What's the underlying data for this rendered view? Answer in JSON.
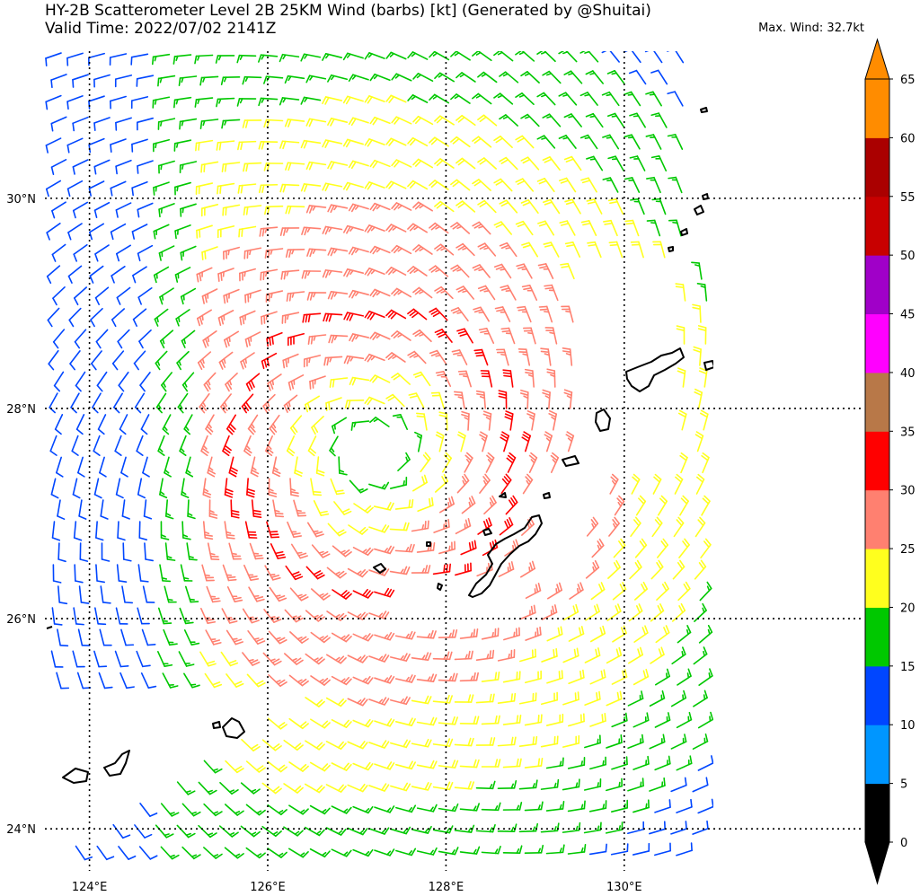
{
  "header": {
    "title": "HY-2B Scatterometer Level 2B 25KM Wind (barbs) [kt] (Generated by @Shuitai)",
    "valid_time": "Valid Time: 2022/07/02 2141Z",
    "max_wind": "Max. Wind: 32.7kt"
  },
  "map": {
    "lon_range": [
      123.5,
      131.0
    ],
    "lat_range": [
      23.6,
      31.4
    ],
    "lon_ticks": [
      "124°E",
      "126°E",
      "128°E",
      "130°E"
    ],
    "lon_tick_values": [
      124,
      126,
      128,
      130
    ],
    "lat_ticks": [
      "30°N",
      "28°N",
      "26°N",
      "24°N"
    ],
    "lat_tick_values": [
      30,
      28,
      26,
      24
    ],
    "grid": true,
    "vortex_center": [
      127.2,
      27.6
    ]
  },
  "colorbar": {
    "levels": [
      "0",
      "5",
      "10",
      "15",
      "20",
      "25",
      "30",
      "35",
      "40",
      "45",
      "50",
      "55",
      "60",
      "65"
    ],
    "colors": [
      "#000000",
      "#0096ff",
      "#0046ff",
      "#00c800",
      "#ffff1e",
      "#ff8070",
      "#ff0000",
      "#b87848",
      "#ff00ff",
      "#a000c8",
      "#c80000",
      "#aa0000",
      "#ff8c00"
    ],
    "extend": "both"
  }
}
